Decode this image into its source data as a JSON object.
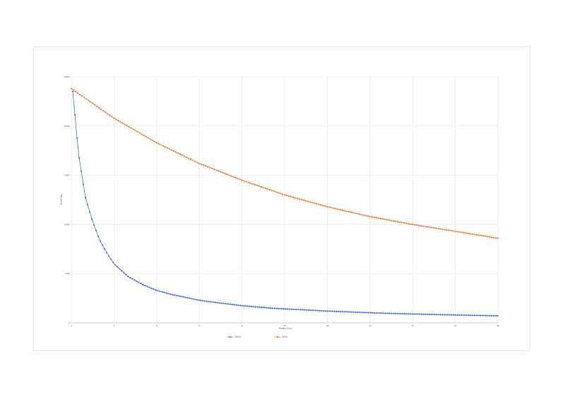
{
  "chart_data": {
    "type": "line",
    "title": "",
    "xlabel": "Predict N m",
    "ylabel": "D-V-P Ma",
    "xlim": [
      0,
      30
    ],
    "ylim": [
      0,
      25000
    ],
    "x_ticks": [
      "0",
      "3",
      "6",
      "9",
      "12",
      "15",
      "18",
      "21",
      "24",
      "27",
      "30"
    ],
    "y_ticks": [
      "0",
      "5000",
      "10000",
      "15000",
      "20000",
      "25000"
    ],
    "grid": true,
    "legend_position": "bottom",
    "series": [
      {
        "name": "200/4",
        "color": "#4472c4",
        "x": [
          0.1,
          0.5,
          1,
          1.5,
          2,
          2.5,
          3,
          4,
          5,
          6,
          7,
          8,
          9,
          10,
          12,
          14,
          16,
          18,
          20,
          22,
          24,
          26,
          28,
          30
        ],
        "values": [
          23500,
          17200,
          12700,
          10300,
          8400,
          7100,
          6000,
          4700,
          3900,
          3300,
          2900,
          2600,
          2300,
          2100,
          1750,
          1500,
          1350,
          1200,
          1080,
          980,
          900,
          830,
          770,
          720
        ]
      },
      {
        "name": "200/1",
        "color": "#ed7d31",
        "x": [
          0,
          3,
          6,
          9,
          12,
          15,
          18,
          21,
          24,
          27,
          30
        ],
        "values": [
          23800,
          20800,
          18300,
          16200,
          14500,
          13000,
          11800,
          10800,
          10000,
          9300,
          8600
        ]
      }
    ]
  }
}
